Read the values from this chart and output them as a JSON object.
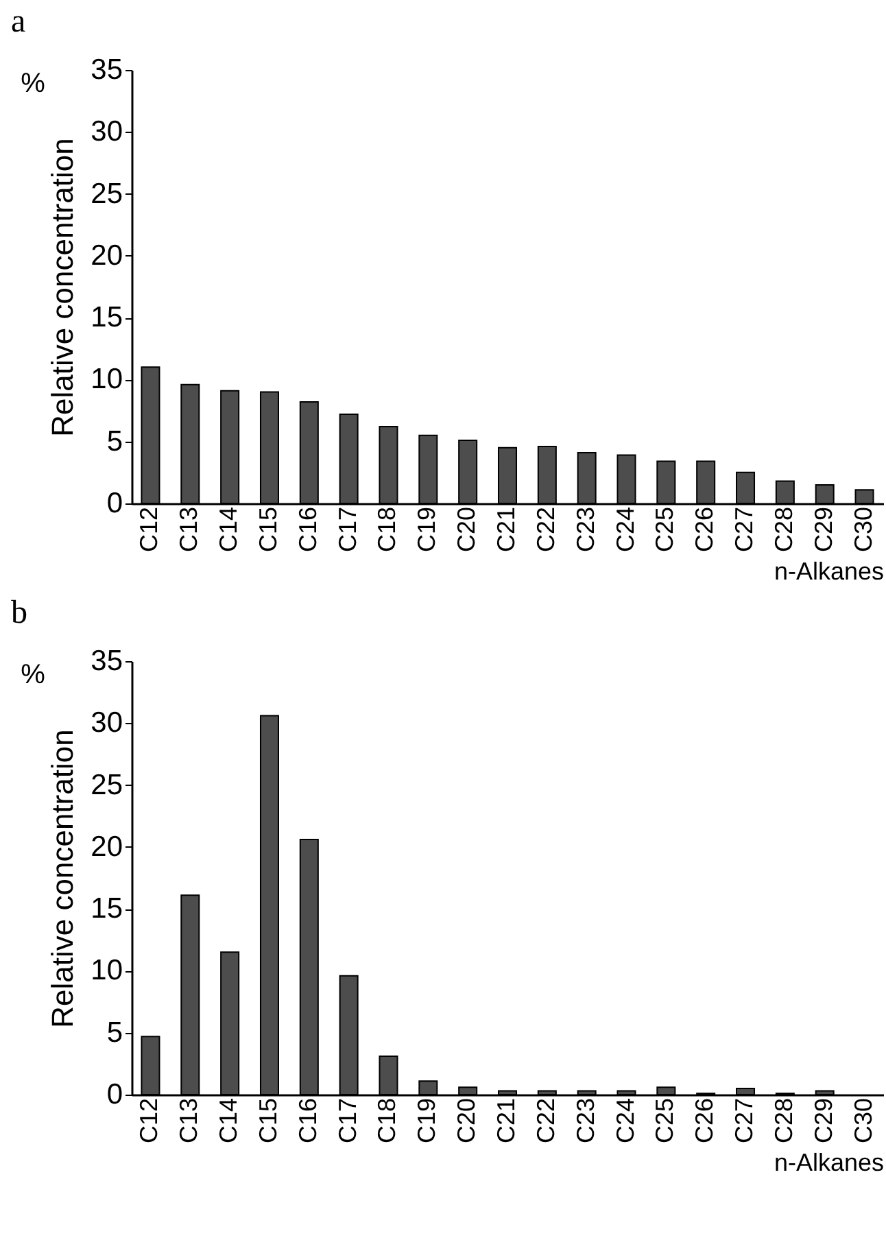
{
  "chart_data": [
    {
      "type": "bar",
      "title": "a",
      "ylabel": "Relative concentration",
      "xlabel": "n-Alkanes",
      "annotations": [
        "%"
      ],
      "categories": [
        "C12",
        "C13",
        "C14",
        "C15",
        "C16",
        "C17",
        "C18",
        "C19",
        "C20",
        "C21",
        "C22",
        "C23",
        "C24",
        "C25",
        "C26",
        "C27",
        "C28",
        "C29",
        "C30"
      ],
      "values": [
        11.0,
        9.6,
        9.1,
        9.0,
        8.2,
        7.2,
        6.2,
        5.5,
        5.1,
        4.5,
        4.6,
        4.1,
        3.9,
        3.4,
        3.4,
        2.5,
        1.8,
        1.5,
        1.1
      ],
      "color": "#4d4d4d",
      "ylim": [
        0,
        35
      ],
      "yticks": [
        0,
        5,
        10,
        15,
        20,
        25,
        30,
        35
      ],
      "grid": false
    },
    {
      "type": "bar",
      "title": "b",
      "ylabel": "Relative concentration",
      "xlabel": "n-Alkanes",
      "annotations": [
        "%"
      ],
      "categories": [
        "C12",
        "C13",
        "C14",
        "C15",
        "C16",
        "C17",
        "C18",
        "C19",
        "C20",
        "C21",
        "C22",
        "C23",
        "C24",
        "C25",
        "C26",
        "C27",
        "C28",
        "C29",
        "C30"
      ],
      "values": [
        4.7,
        16.1,
        11.5,
        30.6,
        20.6,
        9.6,
        3.1,
        1.1,
        0.6,
        0.3,
        0.3,
        0.3,
        0.3,
        0.6,
        0.1,
        0.5,
        0.1,
        0.3,
        null
      ],
      "color": "#4d4d4d",
      "ylim": [
        0,
        35
      ],
      "yticks": [
        0,
        5,
        10,
        15,
        20,
        25,
        30,
        35
      ],
      "grid": false
    }
  ]
}
